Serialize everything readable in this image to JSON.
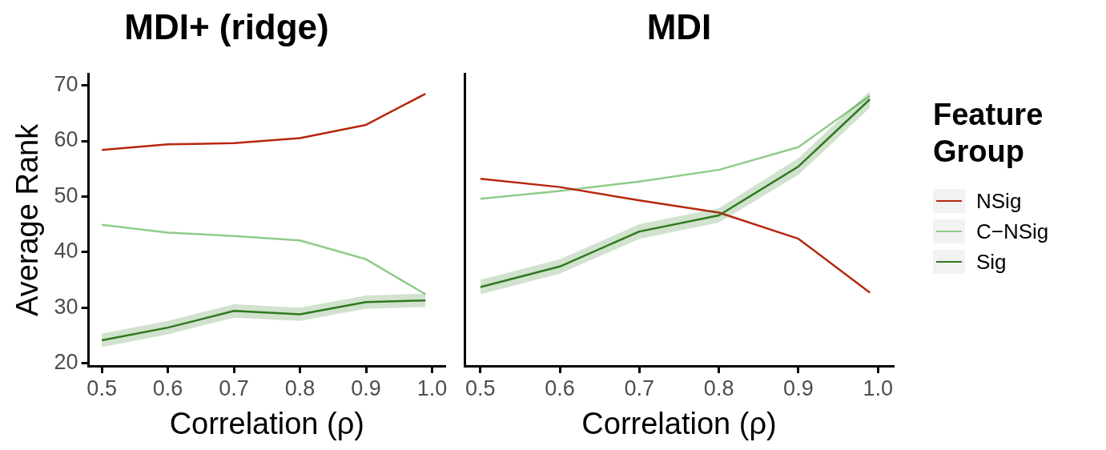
{
  "chart_data": [
    {
      "type": "line",
      "title": "MDI+ (ridge)",
      "xlabel": "Correlation (ρ)",
      "ylabel": "Average Rank",
      "x": [
        0.5,
        0.6,
        0.7,
        0.8,
        0.9,
        0.99
      ],
      "xlim": [
        0.48,
        1.02
      ],
      "xticks": [
        0.5,
        0.6,
        0.7,
        0.8,
        0.9,
        {
          "value": 1,
          "label": "1.0"
        }
      ],
      "ylim": [
        19.5,
        72
      ],
      "yticks": [
        20,
        30,
        40,
        50,
        60,
        70
      ],
      "grid": false,
      "legend": false,
      "marker": "none",
      "line_style": "solid",
      "series": [
        {
          "color": "#b8260e",
          "values": [
            58.4,
            59.4,
            59.6,
            60.5,
            62.9,
            68.5
          ]
        },
        {
          "color": "#8fcc8a",
          "values": [
            44.9,
            43.5,
            42.9,
            42.1,
            38.7,
            32.4
          ]
        },
        {
          "color": "#2f7a1f",
          "values": [
            24.1,
            26.4,
            29.4,
            28.8,
            31.0,
            31.3
          ],
          "lower": [
            22.9,
            25.2,
            28.2,
            27.6,
            29.8,
            30.1
          ],
          "upper": [
            25.3,
            27.6,
            30.6,
            30.0,
            32.2,
            32.5
          ]
        }
      ]
    },
    {
      "type": "line",
      "title": "MDI",
      "xlabel": "Correlation (ρ)",
      "x": [
        0.5,
        0.6,
        0.7,
        0.8,
        0.9,
        0.99
      ],
      "xlim": [
        0.48,
        1.02
      ],
      "xticks": [
        0.5,
        0.6,
        0.7,
        0.8,
        0.9,
        {
          "value": 1,
          "label": "1.0"
        }
      ],
      "ylim": [
        19.5,
        72
      ],
      "yticks": [
        20,
        30,
        40,
        50,
        60,
        70
      ],
      "tick_labels": "x",
      "grid": false,
      "legend": "right",
      "legend_title": "Feature Group",
      "marker": "none",
      "line_style": "solid",
      "series": [
        {
          "name": "NSig",
          "color": "#b8260e",
          "values": [
            53.2,
            51.7,
            49.3,
            47.1,
            42.4,
            32.7
          ]
        },
        {
          "name": "C−NSig",
          "color": "#8fcc8a",
          "values": [
            49.6,
            51.0,
            52.7,
            54.8,
            58.9,
            68.1
          ]
        },
        {
          "name": "Sig",
          "color": "#2f7a1f",
          "values": [
            33.7,
            37.4,
            43.7,
            46.6,
            55.4,
            67.5
          ],
          "lower": [
            32.4,
            36.1,
            42.4,
            45.3,
            53.9,
            66.0
          ],
          "upper": [
            35.0,
            38.7,
            45.0,
            47.9,
            56.9,
            69.0
          ]
        }
      ]
    }
  ]
}
